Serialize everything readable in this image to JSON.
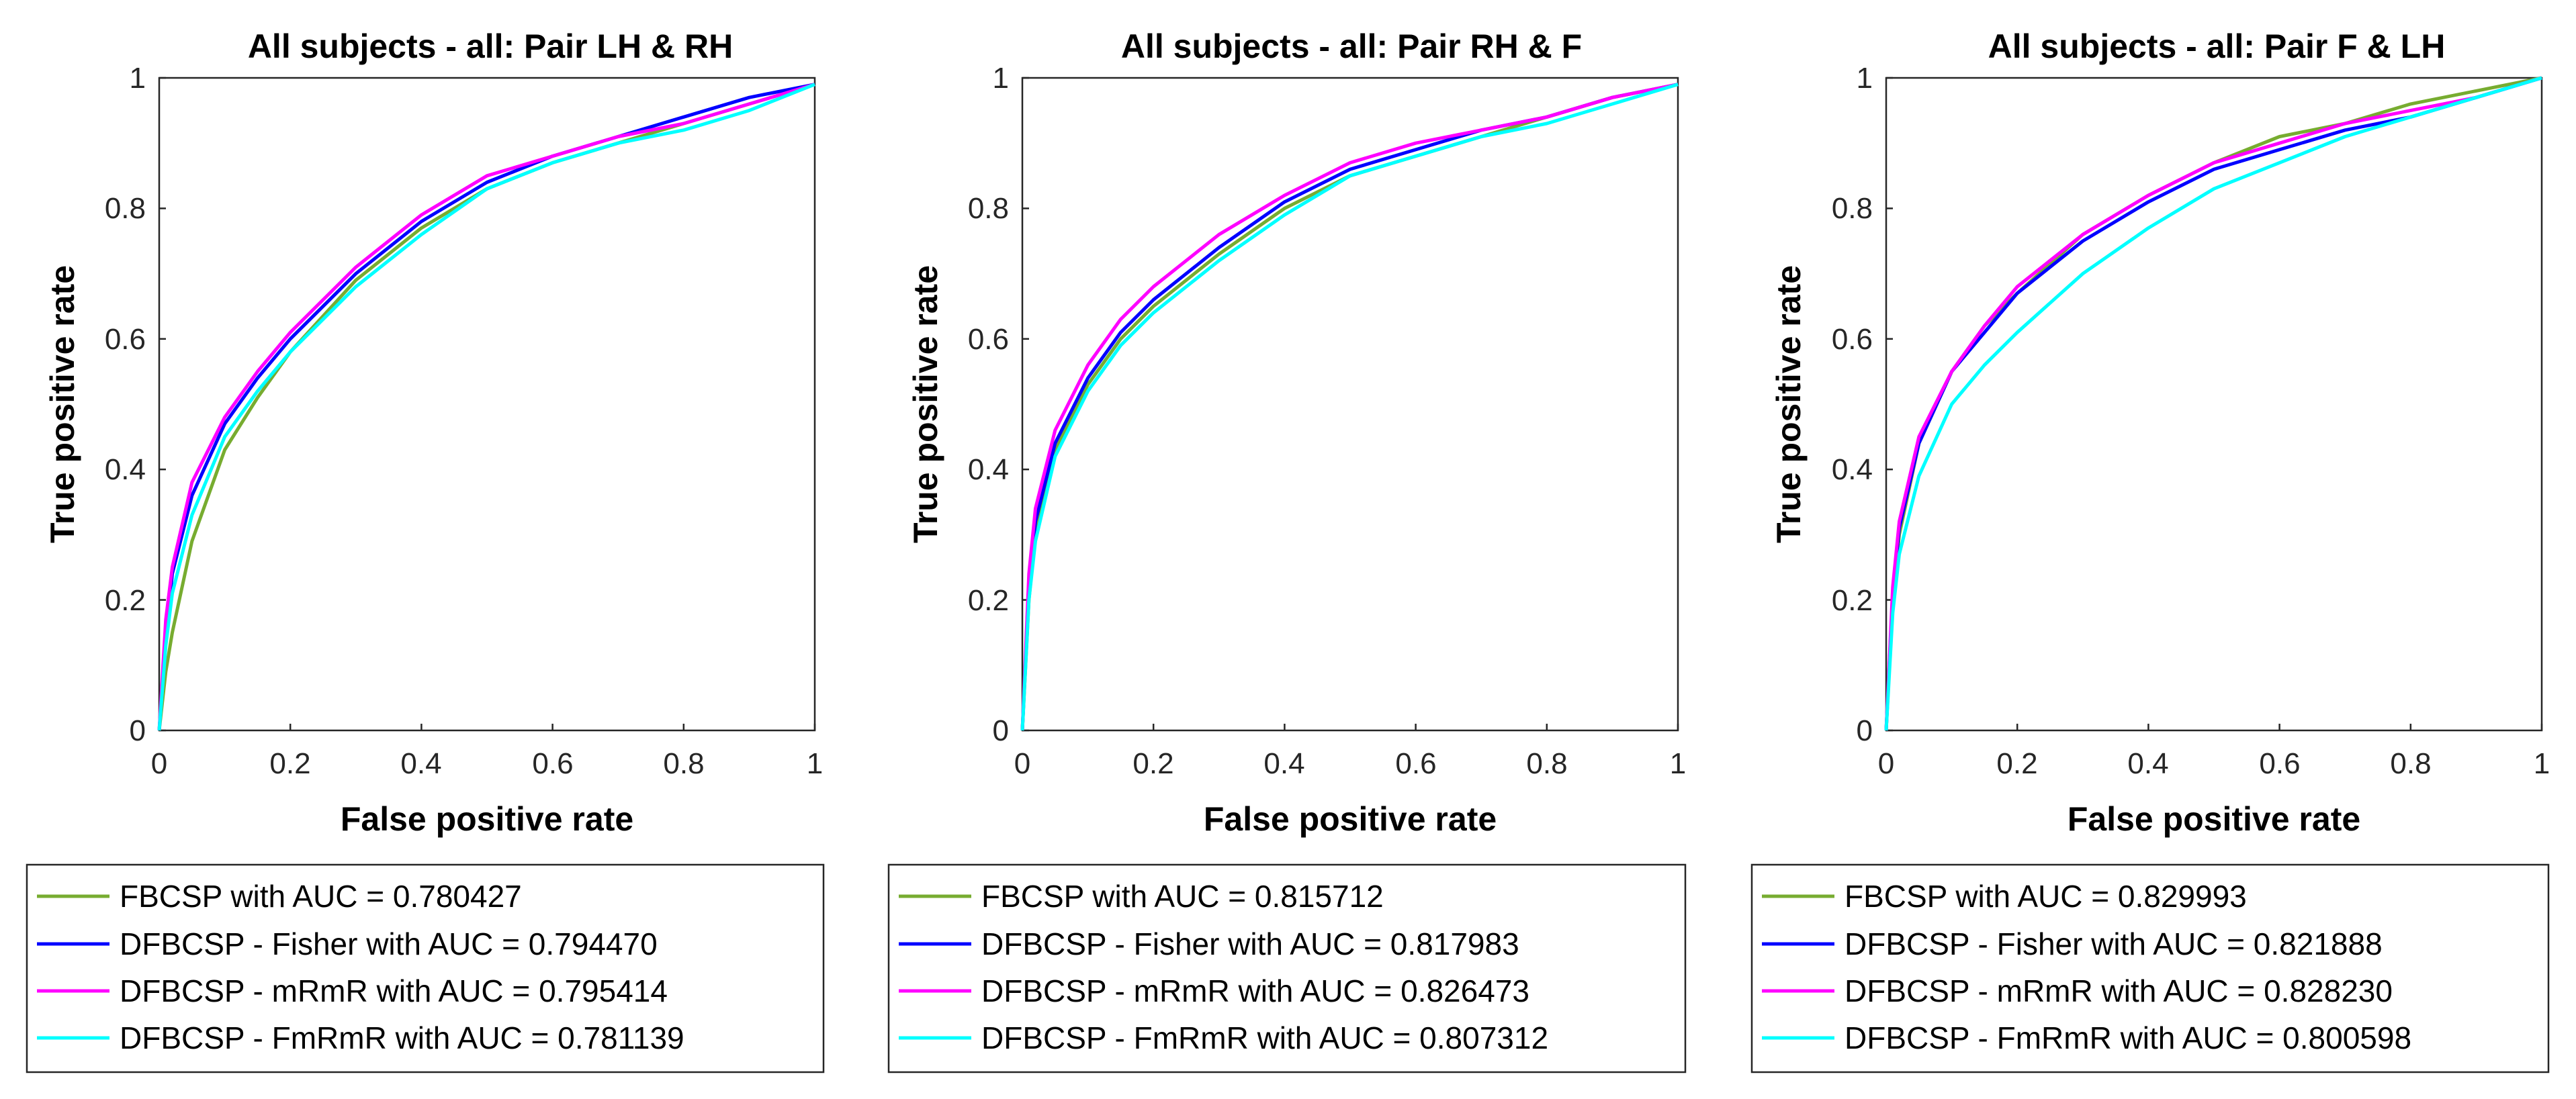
{
  "chart_data": [
    {
      "type": "line",
      "title": "All subjects - all: Pair LH & RH",
      "xlabel": "False positive rate",
      "ylabel": "True positive rate",
      "xlim": [
        0,
        1
      ],
      "ylim": [
        0,
        1
      ],
      "xticks": [
        "0",
        "0.2",
        "0.4",
        "0.6",
        "0.8",
        "1"
      ],
      "yticks": [
        "0",
        "0.2",
        "0.4",
        "0.6",
        "0.8",
        "1"
      ],
      "legend_position": "below",
      "series": [
        {
          "name": "FBCSP with AUC = 0.780427",
          "color": "#77ac30",
          "x": [
            0,
            0.01,
            0.02,
            0.05,
            0.1,
            0.15,
            0.2,
            0.3,
            0.4,
            0.5,
            0.6,
            0.7,
            0.8,
            0.9,
            1
          ],
          "y": [
            0,
            0.09,
            0.15,
            0.29,
            0.43,
            0.51,
            0.58,
            0.69,
            0.77,
            0.83,
            0.87,
            0.9,
            0.93,
            0.96,
            0.99
          ]
        },
        {
          "name": "DFBCSP - Fisher with AUC = 0.794470",
          "color": "#0000ff",
          "x": [
            0,
            0.01,
            0.02,
            0.05,
            0.1,
            0.15,
            0.2,
            0.3,
            0.4,
            0.5,
            0.6,
            0.7,
            0.8,
            0.9,
            1
          ],
          "y": [
            0,
            0.14,
            0.24,
            0.36,
            0.47,
            0.54,
            0.6,
            0.7,
            0.78,
            0.84,
            0.88,
            0.91,
            0.94,
            0.97,
            0.99
          ]
        },
        {
          "name": "DFBCSP - mRmR with AUC = 0.795414",
          "color": "#ff00ff",
          "x": [
            0,
            0.01,
            0.02,
            0.05,
            0.1,
            0.15,
            0.2,
            0.3,
            0.4,
            0.5,
            0.6,
            0.7,
            0.8,
            0.9,
            1
          ],
          "y": [
            0,
            0.17,
            0.25,
            0.38,
            0.48,
            0.55,
            0.61,
            0.71,
            0.79,
            0.85,
            0.88,
            0.91,
            0.93,
            0.96,
            0.99
          ]
        },
        {
          "name": "DFBCSP - FmRmR with AUC = 0.781139",
          "color": "#00ffff",
          "x": [
            0,
            0.01,
            0.02,
            0.05,
            0.1,
            0.15,
            0.2,
            0.3,
            0.4,
            0.5,
            0.6,
            0.7,
            0.8,
            0.9,
            1
          ],
          "y": [
            0,
            0.13,
            0.21,
            0.33,
            0.45,
            0.52,
            0.58,
            0.68,
            0.76,
            0.83,
            0.87,
            0.9,
            0.92,
            0.95,
            0.99
          ]
        }
      ]
    },
    {
      "type": "line",
      "title": "All subjects - all: Pair RH & F",
      "xlabel": "False positive rate",
      "ylabel": "True positive rate",
      "xlim": [
        0,
        1
      ],
      "ylim": [
        0,
        1
      ],
      "xticks": [
        "0",
        "0.2",
        "0.4",
        "0.6",
        "0.8",
        "1"
      ],
      "yticks": [
        "0",
        "0.2",
        "0.4",
        "0.6",
        "0.8",
        "1"
      ],
      "legend_position": "below",
      "series": [
        {
          "name": "FBCSP with AUC = 0.815712",
          "color": "#77ac30",
          "x": [
            0,
            0.01,
            0.02,
            0.05,
            0.1,
            0.15,
            0.2,
            0.3,
            0.4,
            0.5,
            0.6,
            0.7,
            0.8,
            0.9,
            1
          ],
          "y": [
            0,
            0.2,
            0.3,
            0.43,
            0.53,
            0.6,
            0.65,
            0.73,
            0.8,
            0.85,
            0.88,
            0.91,
            0.94,
            0.97,
            0.99
          ]
        },
        {
          "name": "DFBCSP - Fisher with AUC = 0.817983",
          "color": "#0000ff",
          "x": [
            0,
            0.01,
            0.02,
            0.05,
            0.1,
            0.15,
            0.2,
            0.3,
            0.4,
            0.5,
            0.6,
            0.7,
            0.8,
            0.9,
            1
          ],
          "y": [
            0,
            0.22,
            0.32,
            0.44,
            0.54,
            0.61,
            0.66,
            0.74,
            0.81,
            0.86,
            0.89,
            0.92,
            0.94,
            0.97,
            0.99
          ]
        },
        {
          "name": "DFBCSP - mRmR with AUC = 0.826473",
          "color": "#ff00ff",
          "x": [
            0,
            0.01,
            0.02,
            0.05,
            0.1,
            0.15,
            0.2,
            0.3,
            0.4,
            0.5,
            0.6,
            0.7,
            0.8,
            0.9,
            1
          ],
          "y": [
            0,
            0.24,
            0.34,
            0.46,
            0.56,
            0.63,
            0.68,
            0.76,
            0.82,
            0.87,
            0.9,
            0.92,
            0.94,
            0.97,
            0.99
          ]
        },
        {
          "name": "DFBCSP - FmRmR with AUC = 0.807312",
          "color": "#00ffff",
          "x": [
            0,
            0.01,
            0.02,
            0.05,
            0.1,
            0.15,
            0.2,
            0.3,
            0.4,
            0.5,
            0.6,
            0.7,
            0.8,
            0.9,
            1
          ],
          "y": [
            0,
            0.2,
            0.29,
            0.42,
            0.52,
            0.59,
            0.64,
            0.72,
            0.79,
            0.85,
            0.88,
            0.91,
            0.93,
            0.96,
            0.99
          ]
        }
      ]
    },
    {
      "type": "line",
      "title": "All subjects - all: Pair F & LH",
      "xlabel": "False positive rate",
      "ylabel": "True positive rate",
      "xlim": [
        0,
        1
      ],
      "ylim": [
        0,
        1
      ],
      "xticks": [
        "0",
        "0.2",
        "0.4",
        "0.6",
        "0.8",
        "1"
      ],
      "yticks": [
        "0",
        "0.2",
        "0.4",
        "0.6",
        "0.8",
        "1"
      ],
      "legend_position": "below",
      "series": [
        {
          "name": "FBCSP with AUC = 0.829993",
          "color": "#77ac30",
          "x": [
            0,
            0.01,
            0.02,
            0.05,
            0.1,
            0.15,
            0.2,
            0.3,
            0.4,
            0.5,
            0.6,
            0.7,
            0.8,
            0.9,
            1
          ],
          "y": [
            0,
            0.2,
            0.3,
            0.44,
            0.55,
            0.62,
            0.67,
            0.76,
            0.82,
            0.87,
            0.91,
            0.93,
            0.96,
            0.98,
            1
          ]
        },
        {
          "name": "DFBCSP - Fisher with AUC = 0.821888",
          "color": "#0000ff",
          "x": [
            0,
            0.01,
            0.02,
            0.05,
            0.1,
            0.15,
            0.2,
            0.3,
            0.4,
            0.5,
            0.6,
            0.7,
            0.8,
            0.9,
            1
          ],
          "y": [
            0,
            0.21,
            0.31,
            0.44,
            0.55,
            0.61,
            0.67,
            0.75,
            0.81,
            0.86,
            0.89,
            0.92,
            0.94,
            0.97,
            1
          ]
        },
        {
          "name": "DFBCSP - mRmR with AUC = 0.828230",
          "color": "#ff00ff",
          "x": [
            0,
            0.01,
            0.02,
            0.05,
            0.1,
            0.15,
            0.2,
            0.3,
            0.4,
            0.5,
            0.6,
            0.7,
            0.8,
            0.9,
            1
          ],
          "y": [
            0,
            0.22,
            0.32,
            0.45,
            0.55,
            0.62,
            0.68,
            0.76,
            0.82,
            0.87,
            0.9,
            0.93,
            0.95,
            0.97,
            1
          ]
        },
        {
          "name": "DFBCSP - FmRmR with AUC = 0.800598",
          "color": "#00ffff",
          "x": [
            0,
            0.01,
            0.02,
            0.05,
            0.1,
            0.15,
            0.2,
            0.3,
            0.4,
            0.5,
            0.6,
            0.7,
            0.8,
            0.9,
            1
          ],
          "y": [
            0,
            0.18,
            0.27,
            0.39,
            0.5,
            0.56,
            0.61,
            0.7,
            0.77,
            0.83,
            0.87,
            0.91,
            0.94,
            0.97,
            1
          ]
        }
      ]
    }
  ]
}
